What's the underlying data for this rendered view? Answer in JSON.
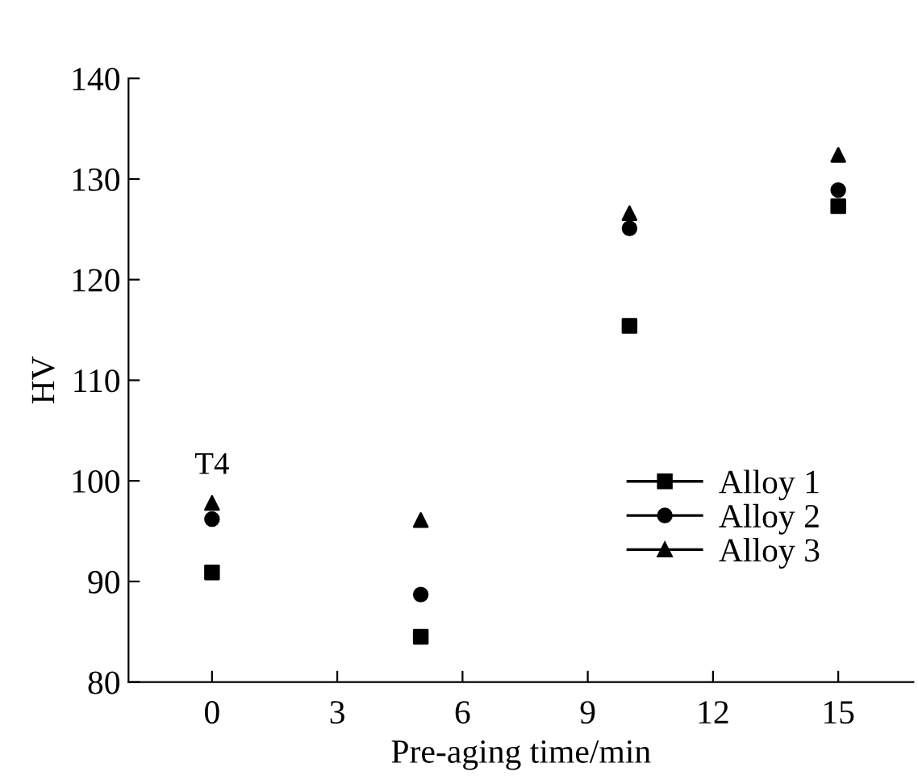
{
  "chart_data": {
    "type": "scatter",
    "xlabel": "Pre-aging time/min",
    "ylabel": "HV",
    "x": [
      0,
      5,
      10,
      15
    ],
    "series": [
      {
        "name": "Alloy 1",
        "color": "#000000",
        "marker": "square",
        "values": [
          90.9,
          84.5,
          115.4,
          127.3
        ]
      },
      {
        "name": "Alloy 2",
        "color": "#000000",
        "marker": "circle",
        "values": [
          96.2,
          88.7,
          125.1,
          128.9
        ]
      },
      {
        "name": "Alloy 3",
        "color": "#000000",
        "marker": "triangle",
        "values": [
          97.8,
          96.1,
          126.6,
          132.4
        ]
      }
    ],
    "annotations": [
      "T4"
    ],
    "xlim": [
      -2,
      16.8
    ],
    "xticks": [
      0,
      3,
      6,
      9,
      12,
      15
    ],
    "ylim": [
      80,
      140
    ],
    "yticks": [
      80,
      90,
      100,
      110,
      120,
      130,
      140
    ],
    "grid": false,
    "legend": "right"
  }
}
